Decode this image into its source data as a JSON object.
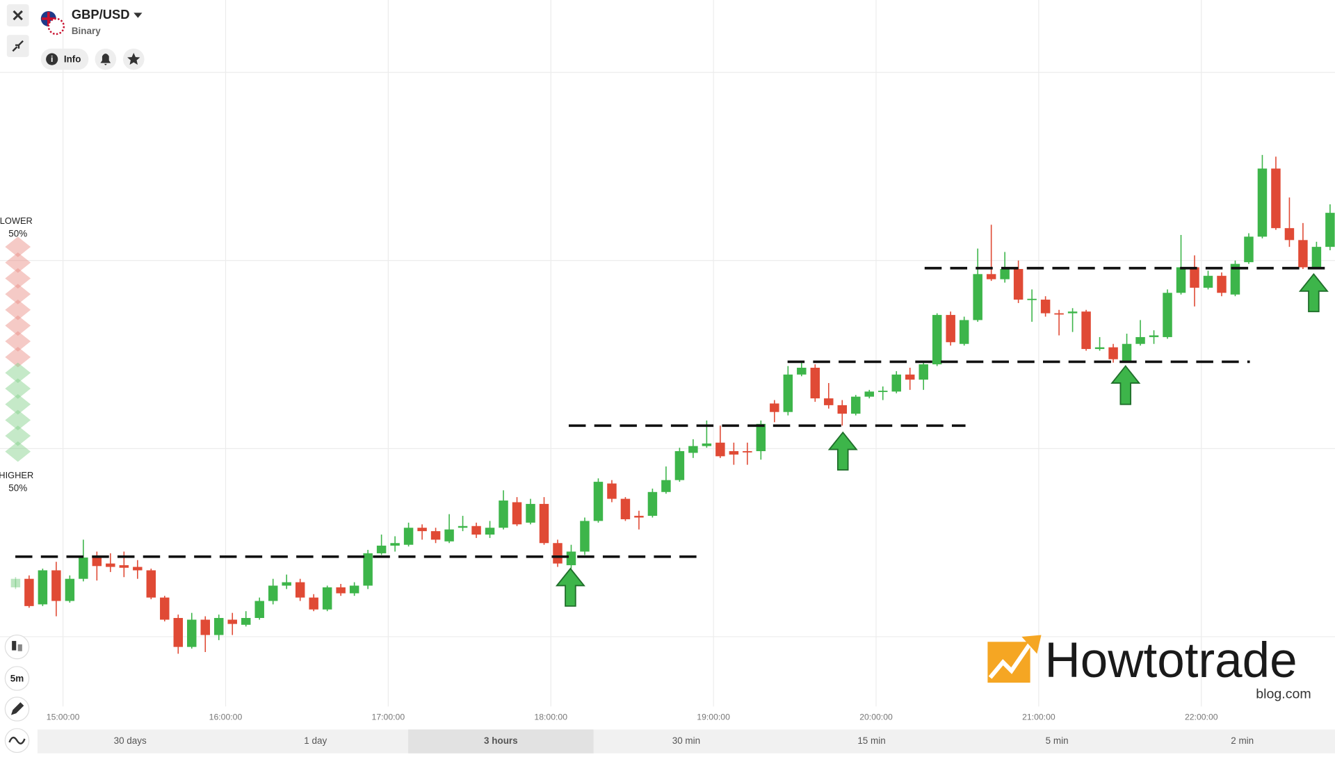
{
  "header": {
    "asset": "GBP/USD",
    "option_type": "Binary",
    "info": "Info"
  },
  "sentiment": {
    "lower_label": "LOWER",
    "lower_pct": "50%",
    "higher_label": "HIGHER",
    "higher_pct": "50%"
  },
  "toolbar": {
    "interval": "5m"
  },
  "periods": [
    "30 days",
    "1 day",
    "3 hours",
    "30 min",
    "15 min",
    "5 min",
    "2 min"
  ],
  "selected_period": "3 hours",
  "logo": {
    "name": "Howtotrade",
    "domain": "blog.com"
  },
  "chart_data": {
    "type": "candlestick",
    "up_color": "#3db54a",
    "down_color": "#e04a35",
    "grid": true,
    "ylim": [
      0,
      800
    ],
    "xticks": [
      "15:00:00",
      "16:00:00",
      "17:00:00",
      "18:00:00",
      "19:00:00",
      "20:00:00",
      "21:00:00",
      "22:00:00"
    ],
    "x": [
      "14:40:00",
      "14:45:00",
      "14:50:00",
      "14:55:00",
      "15:00:00",
      "15:05:00",
      "15:10:00",
      "15:15:00",
      "15:20:00",
      "15:25:00",
      "15:30:00",
      "15:35:00",
      "15:40:00",
      "15:45:00",
      "15:50:00",
      "15:55:00",
      "16:00:00",
      "16:05:00",
      "16:10:00",
      "16:15:00",
      "16:20:00",
      "16:25:00",
      "16:30:00",
      "16:35:00",
      "16:40:00",
      "16:45:00",
      "16:50:00",
      "16:55:00",
      "17:00:00",
      "17:05:00",
      "17:10:00",
      "17:15:00",
      "17:20:00",
      "17:25:00",
      "17:30:00",
      "17:35:00",
      "17:40:00",
      "17:45:00",
      "17:50:00",
      "17:55:00",
      "18:00:00",
      "18:05:00",
      "18:10:00",
      "18:15:00",
      "18:20:00",
      "18:25:00",
      "18:30:00",
      "18:35:00",
      "18:40:00",
      "18:45:00",
      "18:50:00",
      "18:55:00",
      "19:00:00",
      "19:05:00",
      "19:10:00",
      "19:15:00",
      "19:20:00",
      "19:25:00",
      "19:30:00",
      "19:35:00",
      "19:40:00",
      "19:45:00",
      "19:50:00",
      "19:55:00",
      "20:00:00",
      "20:05:00",
      "20:10:00",
      "20:15:00",
      "20:20:00",
      "20:25:00",
      "20:30:00",
      "20:35:00",
      "20:40:00",
      "20:45:00",
      "20:50:00",
      "20:55:00",
      "21:00:00",
      "21:05:00",
      "21:10:00",
      "21:15:00",
      "21:20:00",
      "21:25:00",
      "21:30:00",
      "21:35:00",
      "21:40:00",
      "21:45:00",
      "21:50:00",
      "21:55:00",
      "22:00:00",
      "22:05:00",
      "22:10:00",
      "22:15:00",
      "22:20:00",
      "22:25:00",
      "22:30:00",
      "22:35:00",
      "22:40:00",
      "22:45:00"
    ],
    "open": [
      110,
      120,
      90,
      130,
      94,
      120,
      145,
      138,
      136,
      134,
      130,
      98,
      74,
      40,
      72,
      54,
      72,
      66,
      74,
      94,
      112,
      116,
      98,
      84,
      110,
      103,
      112,
      150,
      159,
      160,
      180,
      176,
      164,
      180,
      182,
      172,
      180,
      210,
      186,
      208,
      162,
      136,
      152,
      188,
      232,
      214,
      194,
      194,
      222,
      236,
      268,
      276,
      280,
      270,
      270,
      270,
      326,
      316,
      360,
      368,
      332,
      324,
      314,
      334,
      340,
      340,
      360,
      354,
      372,
      430,
      396,
      424,
      478,
      472,
      484,
      448,
      448,
      432,
      432,
      434,
      390,
      392,
      376,
      396,
      404,
      404,
      456,
      486,
      462,
      476,
      454,
      492,
      522,
      602,
      532,
      518,
      486,
      510
    ],
    "high": [
      122,
      124,
      132,
      140,
      124,
      166,
      152,
      150,
      152,
      142,
      132,
      100,
      78,
      80,
      76,
      78,
      80,
      82,
      98,
      120,
      125,
      120,
      102,
      112,
      114,
      116,
      154,
      172,
      170,
      186,
      184,
      180,
      196,
      194,
      186,
      188,
      224,
      216,
      214,
      216,
      166,
      160,
      192,
      238,
      236,
      216,
      200,
      226,
      252,
      274,
      284,
      306,
      300,
      280,
      280,
      306,
      330,
      370,
      376,
      372,
      350,
      330,
      336,
      342,
      346,
      364,
      368,
      376,
      432,
      434,
      428,
      508,
      536,
      504,
      494,
      460,
      452,
      436,
      438,
      436,
      404,
      396,
      408,
      424,
      412,
      460,
      524,
      500,
      482,
      480,
      494,
      526,
      618,
      616,
      568,
      538,
      516,
      560
    ],
    "low": [
      108,
      86,
      88,
      76,
      92,
      117,
      118,
      128,
      122,
      120,
      96,
      70,
      32,
      38,
      34,
      48,
      54,
      64,
      72,
      90,
      108,
      94,
      82,
      82,
      100,
      100,
      108,
      148,
      152,
      158,
      166,
      162,
      162,
      176,
      168,
      168,
      178,
      182,
      184,
      160,
      134,
      132,
      148,
      186,
      210,
      188,
      178,
      192,
      220,
      234,
      262,
      274,
      262,
      254,
      254,
      260,
      304,
      312,
      358,
      328,
      320,
      300,
      312,
      332,
      330,
      338,
      342,
      342,
      370,
      394,
      394,
      422,
      470,
      468,
      444,
      422,
      428,
      406,
      410,
      388,
      388,
      374,
      374,
      394,
      396,
      402,
      454,
      440,
      460,
      452,
      452,
      490,
      520,
      530,
      510,
      484,
      484,
      506
    ],
    "close": [
      120,
      88,
      130,
      94,
      120,
      145,
      135,
      134,
      133,
      130,
      98,
      72,
      40,
      72,
      54,
      74,
      67,
      74,
      94,
      112,
      116,
      98,
      84,
      110,
      103,
      112,
      150,
      159,
      162,
      180,
      176,
      166,
      178,
      182,
      172,
      180,
      212,
      184,
      208,
      162,
      138,
      152,
      188,
      234,
      214,
      190,
      192,
      222,
      236,
      270,
      276,
      279,
      264,
      266,
      269,
      302,
      316,
      360,
      368,
      332,
      324,
      314,
      334,
      340,
      341,
      360,
      354,
      372,
      430,
      398,
      424,
      478,
      472,
      484,
      448,
      449,
      432,
      431,
      434,
      390,
      392,
      378,
      396,
      404,
      406,
      456,
      486,
      462,
      476,
      456,
      490,
      522,
      602,
      532,
      518,
      486,
      510,
      550
    ]
  }
}
